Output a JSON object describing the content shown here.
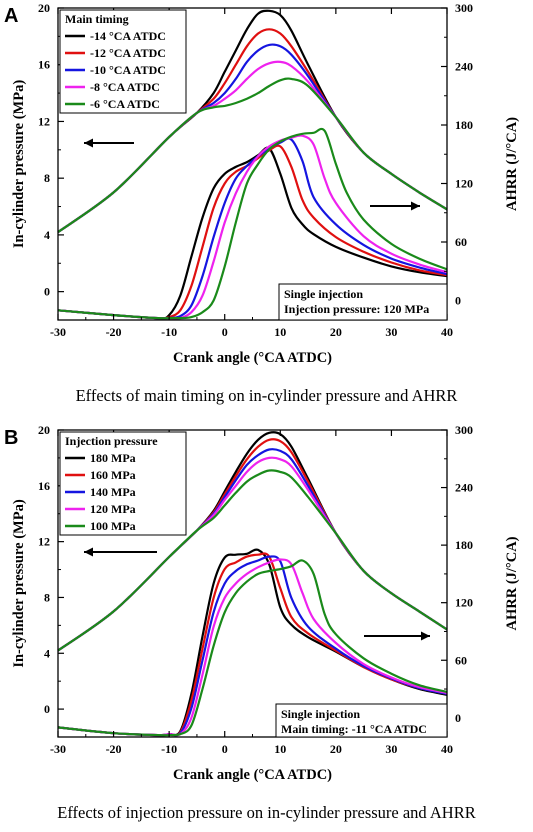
{
  "chart_data": [
    {
      "type": "line",
      "panel_label": "A",
      "xlabel": "Crank angle (°CA ATDC)",
      "ylabel": "In-cylinder pressure (MPa)",
      "y2label": "AHRR (J/°CA)",
      "xlim": [
        -30,
        40
      ],
      "ylim": [
        -2,
        20
      ],
      "y2lim": [
        -20,
        300
      ],
      "xticks": [
        "-30",
        "-20",
        "-10",
        "0",
        "10",
        "20",
        "30",
        "40"
      ],
      "yticks": [
        "0",
        "4",
        "8",
        "12",
        "16",
        "20"
      ],
      "y2ticks": [
        "0",
        "60",
        "120",
        "180",
        "240",
        "300"
      ],
      "legend_title": "Main timing",
      "legend_position": "top-left",
      "annotation": [
        "Single injection",
        "Injection pressure: 120 MPa"
      ],
      "caption": "Effects of main timing on in-cylinder pressure and AHRR",
      "series": [
        {
          "name": "-14 °CA ATDC",
          "color": "#000000",
          "pressure": {
            "x": [
              -30,
              -20,
              -10,
              -5,
              -2,
              0,
              2,
              4,
              6,
              8,
              10,
              12,
              15,
              20,
              25,
              30,
              35,
              40
            ],
            "y": [
              4.2,
              7.0,
              10.9,
              12.6,
              14.0,
              15.5,
              17.0,
              18.5,
              19.6,
              19.8,
              19.5,
              18.4,
              16.0,
              12.3,
              9.8,
              8.3,
              7.0,
              5.8
            ]
          },
          "ahrr": {
            "x": [
              -30,
              -20,
              -12,
              -10,
              -8,
              -6,
              -4,
              -2,
              0,
              2,
              4,
              6,
              8,
              10,
              12,
              14,
              16,
              20,
              25,
              30,
              35,
              40
            ],
            "y": [
              -10,
              -15,
              -18,
              -15,
              5,
              45,
              85,
              115,
              130,
              137,
              142,
              149,
              156,
              130,
              95,
              78,
              68,
              55,
              44,
              35,
              29,
              25
            ]
          }
        },
        {
          "name": "-12 °CA ATDC",
          "color": "#e01010",
          "pressure": {
            "x": [
              -30,
              -20,
              -10,
              -5,
              -2,
              0,
              2,
              4,
              6,
              8,
              10,
              12,
              15,
              20,
              25,
              30,
              35,
              40
            ],
            "y": [
              4.2,
              7.0,
              10.9,
              12.6,
              13.6,
              14.7,
              16.0,
              17.3,
              18.2,
              18.5,
              18.2,
              17.3,
              15.5,
              12.3,
              9.8,
              8.3,
              7.0,
              5.8
            ]
          },
          "ahrr": {
            "x": [
              -30,
              -20,
              -12,
              -10,
              -8,
              -6,
              -4,
              -2,
              0,
              2,
              4,
              6,
              8,
              10,
              12,
              14,
              16,
              20,
              25,
              30,
              35,
              40
            ],
            "y": [
              -10,
              -15,
              -18,
              -17,
              -10,
              15,
              55,
              95,
              120,
              132,
              138,
              146,
              154,
              158,
              137,
              103,
              85,
              65,
              50,
              39,
              31,
              26
            ]
          }
        },
        {
          "name": "-10 °CA ATDC",
          "color": "#1515e0",
          "pressure": {
            "x": [
              -30,
              -20,
              -10,
              -5,
              -2,
              0,
              2,
              4,
              6,
              8,
              10,
              12,
              15,
              20,
              25,
              30,
              35,
              40
            ],
            "y": [
              4.2,
              7.0,
              10.9,
              12.6,
              13.3,
              14.0,
              15.0,
              16.2,
              17.0,
              17.4,
              17.3,
              16.7,
              15.2,
              12.3,
              9.8,
              8.3,
              7.0,
              5.8
            ]
          },
          "ahrr": {
            "x": [
              -30,
              -20,
              -12,
              -10,
              -8,
              -6,
              -4,
              -2,
              0,
              2,
              4,
              6,
              8,
              10,
              12,
              14,
              16,
              20,
              25,
              30,
              35,
              40
            ],
            "y": [
              -10,
              -15,
              -18,
              -18,
              -16,
              -5,
              25,
              65,
              100,
              125,
              138,
              148,
              156,
              162,
              165,
              143,
              106,
              78,
              57,
              43,
              34,
              27
            ]
          }
        },
        {
          "name": "-8 °CA ATDC",
          "color": "#ee22ee",
          "pressure": {
            "x": [
              -30,
              -20,
              -10,
              -5,
              -2,
              0,
              2,
              4,
              6,
              8,
              10,
              12,
              15,
              20,
              25,
              30,
              35,
              40
            ],
            "y": [
              4.2,
              7.0,
              10.9,
              12.6,
              13.1,
              13.6,
              14.2,
              15.0,
              15.7,
              16.1,
              16.2,
              15.9,
              14.8,
              12.3,
              9.8,
              8.3,
              7.0,
              5.8
            ]
          },
          "ahrr": {
            "x": [
              -30,
              -20,
              -12,
              -10,
              -8,
              -6,
              -4,
              -2,
              0,
              2,
              4,
              6,
              8,
              10,
              12,
              14,
              16,
              18,
              20,
              25,
              30,
              35,
              40
            ],
            "y": [
              -10,
              -15,
              -18,
              -18,
              -18,
              -12,
              5,
              40,
              80,
              110,
              132,
              148,
              158,
              164,
              167,
              169,
              160,
              125,
              100,
              66,
              48,
              37,
              29
            ]
          }
        },
        {
          "name": "-6 °CA ATDC",
          "color": "#1a8a1a",
          "pressure": {
            "x": [
              -30,
              -20,
              -10,
              -5,
              -2,
              0,
              2,
              4,
              6,
              8,
              10,
              12,
              15,
              20,
              25,
              30,
              35,
              40
            ],
            "y": [
              4.2,
              7.0,
              10.9,
              12.6,
              13.0,
              13.1,
              13.3,
              13.6,
              14.0,
              14.5,
              14.9,
              15.0,
              14.5,
              12.3,
              9.8,
              8.3,
              7.0,
              5.8
            ]
          },
          "ahrr": {
            "x": [
              -30,
              -20,
              -12,
              -10,
              -8,
              -6,
              -4,
              -2,
              0,
              2,
              4,
              6,
              8,
              10,
              12,
              14,
              16,
              18,
              20,
              22,
              25,
              30,
              35,
              40
            ],
            "y": [
              -10,
              -15,
              -18,
              -18,
              -18,
              -17,
              -12,
              0,
              35,
              80,
              120,
              140,
              155,
              163,
              168,
              171,
              172,
              174,
              140,
              110,
              83,
              58,
              43,
              32
            ]
          }
        }
      ]
    },
    {
      "type": "line",
      "panel_label": "B",
      "xlabel": "Crank angle (°CA ATDC)",
      "ylabel": "In-cylinder pressure (MPa)",
      "y2label": "AHRR (J/°CA)",
      "xlim": [
        -30,
        40
      ],
      "ylim": [
        -2,
        20
      ],
      "y2lim": [
        -20,
        300
      ],
      "xticks": [
        "-30",
        "-20",
        "-10",
        "0",
        "10",
        "20",
        "30",
        "40"
      ],
      "yticks": [
        "0",
        "4",
        "8",
        "12",
        "16",
        "20"
      ],
      "y2ticks": [
        "0",
        "60",
        "120",
        "180",
        "240",
        "300"
      ],
      "legend_title": "Injection pressure",
      "legend_position": "top-left",
      "annotation": [
        "Single injection",
        "Main timing: -11 °CA ATDC"
      ],
      "caption": "Effects of injection pressure on in-cylinder pressure and AHRR",
      "series": [
        {
          "name": "180 MPa",
          "color": "#000000",
          "pressure": {
            "x": [
              -30,
              -20,
              -10,
              -5,
              -2,
              0,
              2,
              4,
              6,
              8,
              10,
              12,
              15,
              20,
              25,
              30,
              35,
              40
            ],
            "y": [
              4.2,
              7.0,
              10.9,
              12.8,
              14.2,
              15.6,
              17.0,
              18.3,
              19.3,
              19.8,
              19.7,
              18.8,
              16.5,
              12.6,
              9.9,
              8.3,
              7.0,
              5.7
            ]
          },
          "ahrr": {
            "x": [
              -30,
              -20,
              -12,
              -10,
              -8,
              -6,
              -4,
              -2,
              0,
              2,
              4,
              6,
              8,
              10,
              12,
              15,
              20,
              25,
              30,
              35,
              40
            ],
            "y": [
              -10,
              -16,
              -18,
              -17,
              -14,
              25,
              85,
              140,
              167,
              170,
              171,
              175,
              160,
              115,
              97,
              84,
              69,
              53,
              40,
              30,
              24
            ]
          }
        },
        {
          "name": "160 MPa",
          "color": "#e01010",
          "pressure": {
            "x": [
              -30,
              -20,
              -10,
              -5,
              -2,
              0,
              2,
              4,
              6,
              8,
              10,
              12,
              15,
              20,
              25,
              30,
              35,
              40
            ],
            "y": [
              4.2,
              7.0,
              10.9,
              12.8,
              14.1,
              15.4,
              16.7,
              17.9,
              18.8,
              19.3,
              19.2,
              18.4,
              16.3,
              12.6,
              9.9,
              8.3,
              7.0,
              5.7
            ]
          },
          "ahrr": {
            "x": [
              -30,
              -20,
              -12,
              -10,
              -8,
              -6,
              -4,
              -2,
              0,
              2,
              4,
              6,
              8,
              10,
              12,
              15,
              20,
              25,
              30,
              35,
              40
            ],
            "y": [
              -10,
              -16,
              -18,
              -17,
              -15,
              18,
              72,
              125,
              155,
              162,
              168,
              170,
              168,
              135,
              105,
              88,
              70,
              53,
              40,
              31,
              25
            ]
          }
        },
        {
          "name": "140 MPa",
          "color": "#1515e0",
          "pressure": {
            "x": [
              -30,
              -20,
              -10,
              -5,
              -2,
              0,
              2,
              4,
              6,
              8,
              10,
              12,
              15,
              20,
              25,
              30,
              35,
              40
            ],
            "y": [
              4.2,
              7.0,
              10.9,
              12.8,
              14.0,
              15.2,
              16.4,
              17.5,
              18.2,
              18.6,
              18.5,
              17.9,
              16.0,
              12.6,
              9.9,
              8.3,
              7.0,
              5.7
            ]
          },
          "ahrr": {
            "x": [
              -30,
              -20,
              -12,
              -10,
              -8,
              -6,
              -4,
              -2,
              0,
              2,
              4,
              6,
              8,
              10,
              12,
              15,
              20,
              25,
              30,
              35,
              40
            ],
            "y": [
              -10,
              -16,
              -18,
              -17,
              -16,
              10,
              60,
              110,
              140,
              153,
              160,
              164,
              168,
              163,
              125,
              95,
              72,
              54,
              41,
              31,
              25
            ]
          }
        },
        {
          "name": "120 MPa",
          "color": "#ee22ee",
          "pressure": {
            "x": [
              -30,
              -20,
              -10,
              -5,
              -2,
              0,
              2,
              4,
              6,
              8,
              10,
              12,
              15,
              20,
              25,
              30,
              35,
              40
            ],
            "y": [
              4.2,
              7.0,
              10.9,
              12.8,
              13.9,
              15.0,
              16.0,
              17.0,
              17.7,
              18.0,
              17.9,
              17.4,
              15.7,
              12.6,
              9.9,
              8.3,
              7.0,
              5.7
            ]
          },
          "ahrr": {
            "x": [
              -30,
              -20,
              -12,
              -10,
              -8,
              -6,
              -4,
              -2,
              0,
              2,
              4,
              6,
              8,
              10,
              12,
              14,
              16,
              20,
              25,
              30,
              35,
              40
            ],
            "y": [
              -10,
              -16,
              -18,
              -17,
              -17,
              0,
              45,
              95,
              125,
              140,
              150,
              157,
              162,
              165,
              160,
              130,
              103,
              78,
              56,
              42,
              32,
              26
            ]
          }
        },
        {
          "name": "100 MPa",
          "color": "#1a8a1a",
          "pressure": {
            "x": [
              -30,
              -20,
              -10,
              -5,
              -2,
              0,
              2,
              4,
              6,
              8,
              10,
              12,
              15,
              20,
              25,
              30,
              35,
              40
            ],
            "y": [
              4.2,
              7.0,
              10.9,
              12.8,
              13.7,
              14.6,
              15.5,
              16.3,
              16.8,
              17.1,
              17.0,
              16.6,
              15.2,
              12.6,
              9.9,
              8.3,
              7.0,
              5.7
            ]
          },
          "ahrr": {
            "x": [
              -30,
              -20,
              -12,
              -10,
              -8,
              -6,
              -4,
              -2,
              0,
              2,
              4,
              6,
              8,
              10,
              12,
              14,
              16,
              18,
              20,
              25,
              30,
              35,
              40
            ],
            "y": [
              -10,
              -16,
              -18,
              -18,
              -17,
              -8,
              30,
              75,
              110,
              130,
              142,
              150,
              153,
              155,
              158,
              164,
              150,
              108,
              87,
              62,
              46,
              34,
              27
            ]
          }
        }
      ]
    }
  ]
}
